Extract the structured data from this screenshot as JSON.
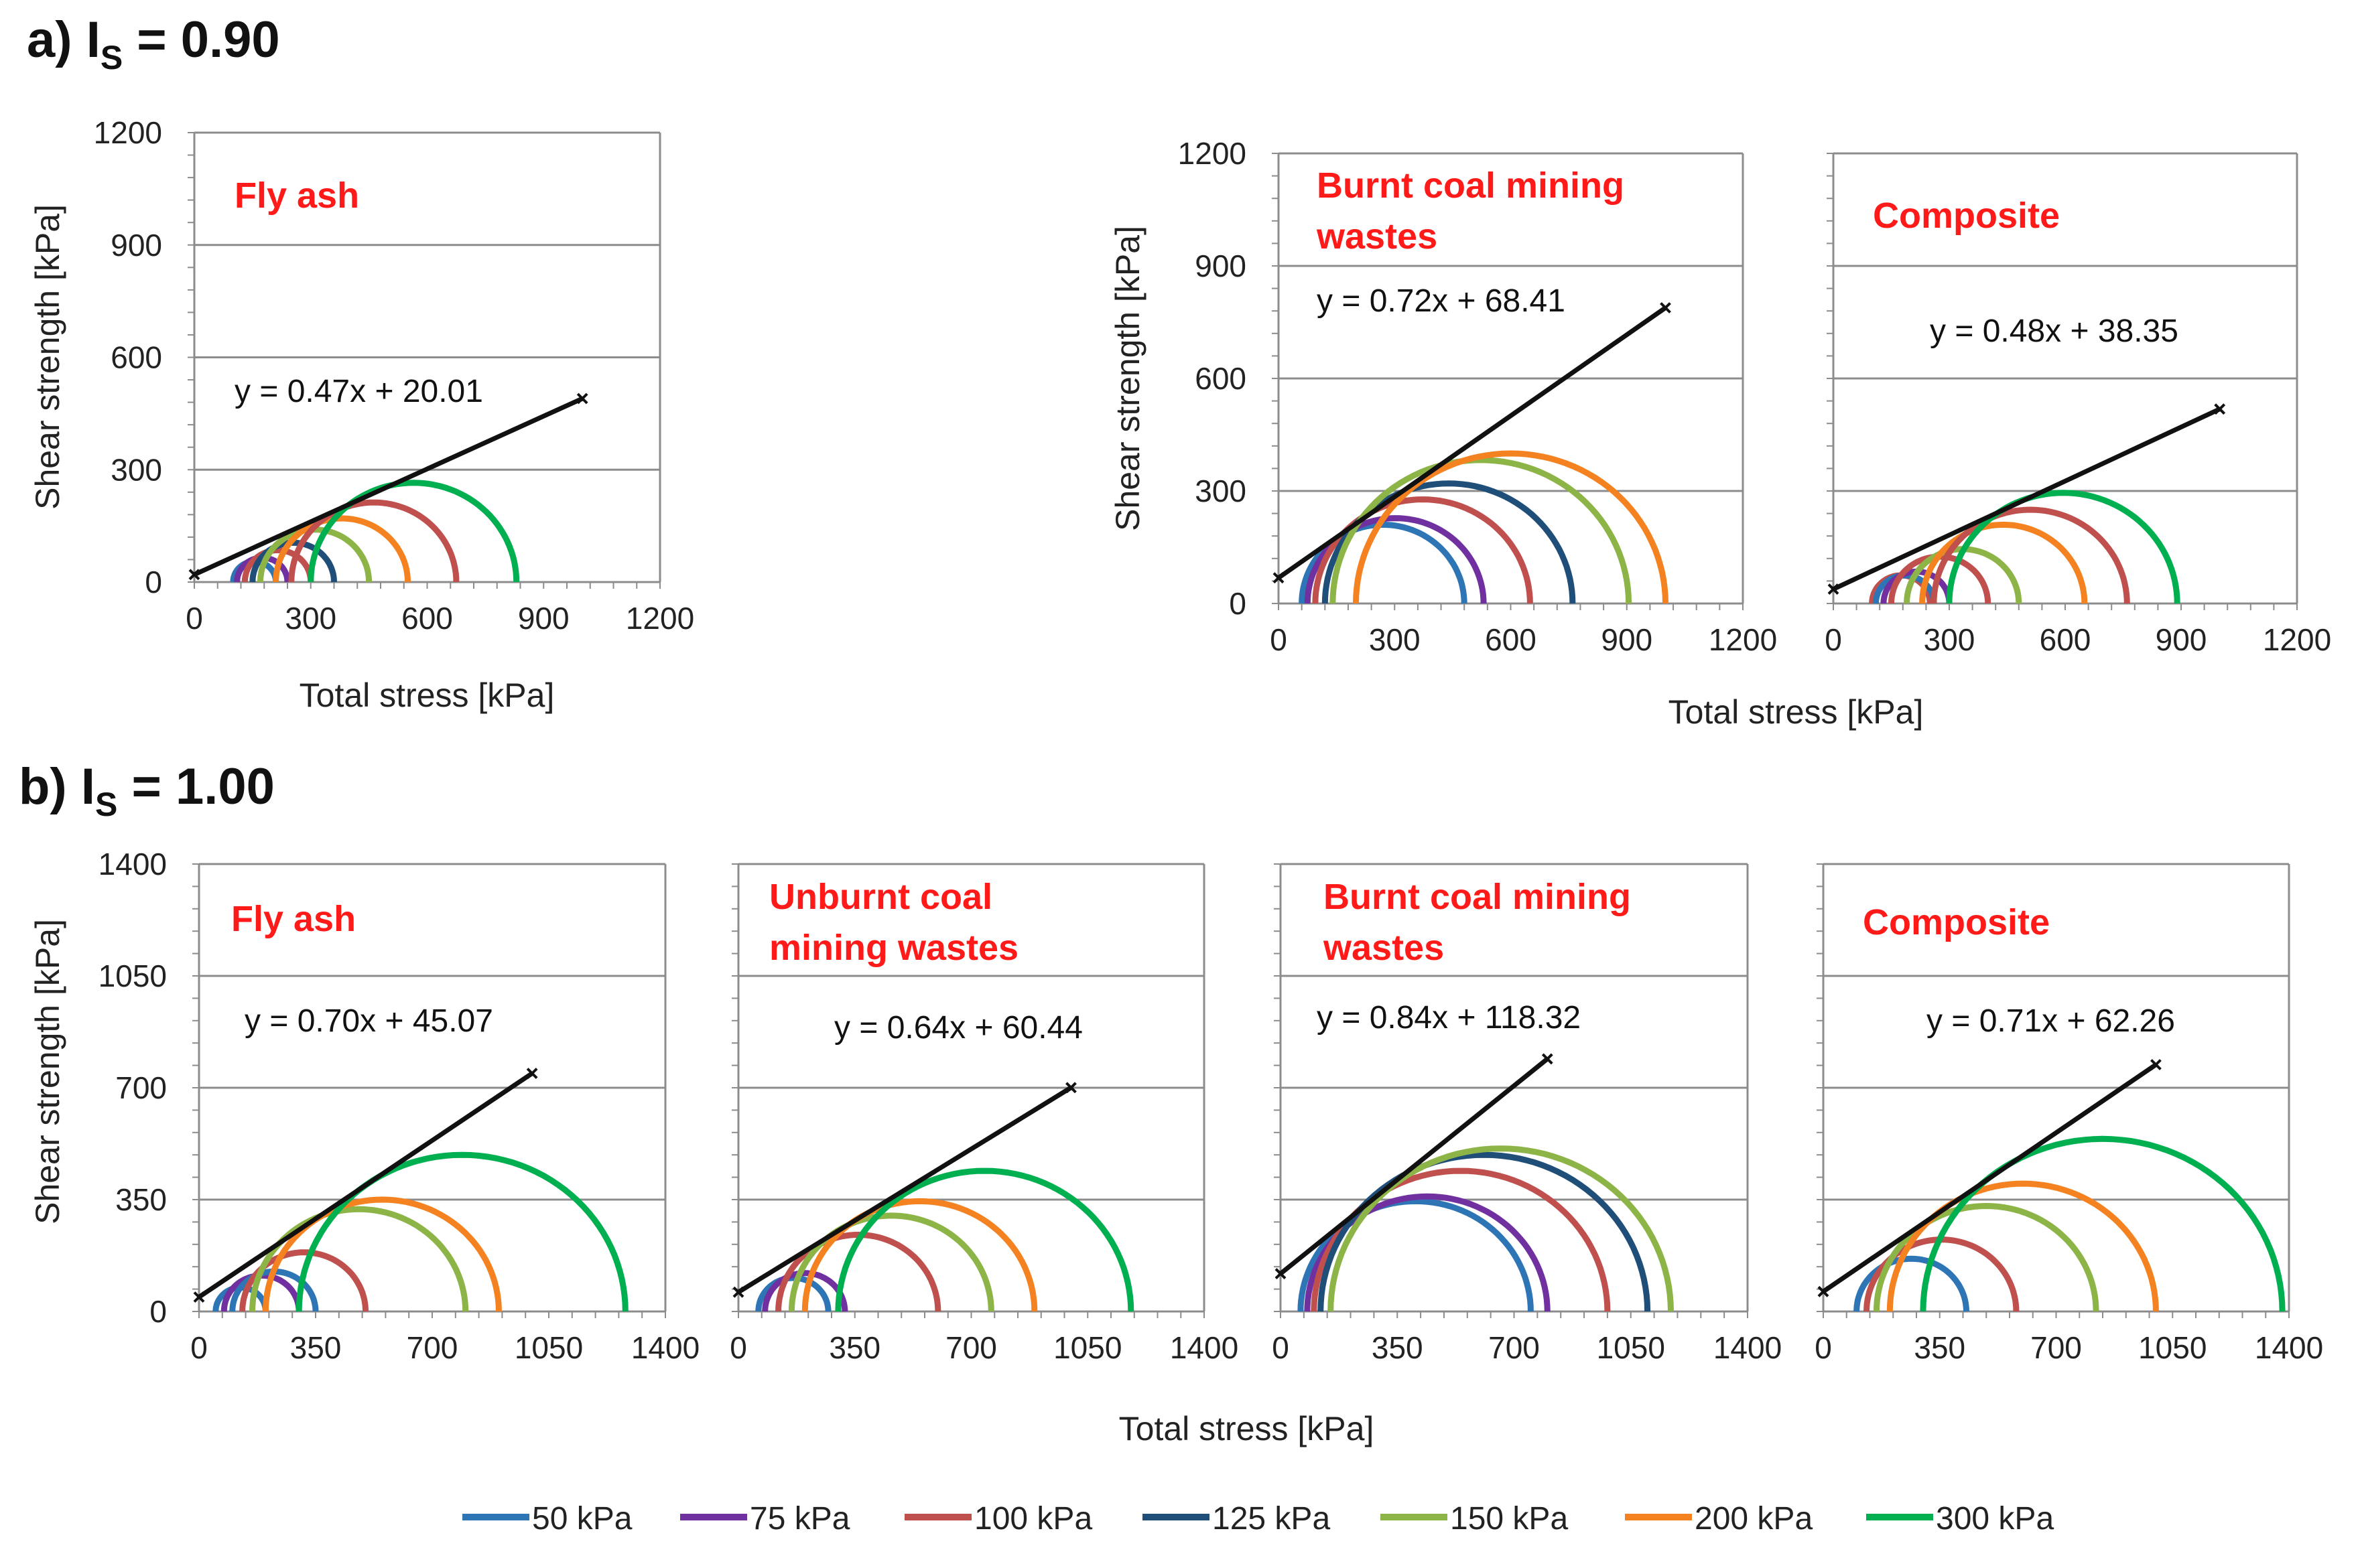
{
  "sections": [
    {
      "label": "a) I",
      "sub": "S",
      "value": " = 0.90"
    },
    {
      "label": "b) I",
      "sub": "S",
      "value": " = 1.00"
    }
  ],
  "axis_titles": {
    "y": "Shear strength [kPa]",
    "x": "Total stress [kPa]"
  },
  "legend": [
    {
      "name": "50 kPa",
      "color": "#2e75b6"
    },
    {
      "name": "75 kPa",
      "color": "#7030a0"
    },
    {
      "name": "100 kPa",
      "color": "#c0504d"
    },
    {
      "name": "125 kPa",
      "color": "#1f4e79"
    },
    {
      "name": "150 kPa",
      "color": "#8db446"
    },
    {
      "name": "200 kPa",
      "color": "#f58220"
    },
    {
      "name": "300 kPa",
      "color": "#00b050"
    }
  ],
  "chart_data": [
    {
      "type": "line",
      "section": "a",
      "title": [
        "Fly ash"
      ],
      "equation": "y = 0.47x + 20.01",
      "xlim": [
        0,
        1200
      ],
      "ylim": [
        0,
        1200
      ],
      "xticks": [
        0,
        300,
        600,
        900,
        1200
      ],
      "yticks": [
        0,
        300,
        600,
        900,
        1200
      ],
      "xlabel": "Total stress [kPa]",
      "ylabel": "Shear strength [kPa]",
      "envelope": {
        "slope": 0.47,
        "intercept": 20.01,
        "x": [
          0,
          1000
        ]
      },
      "circles": [
        {
          "series": "50 kPa",
          "sigma3": 100,
          "sigma1": 210
        },
        {
          "series": "75 kPa",
          "sigma3": 110,
          "sigma1": 240
        },
        {
          "series": "100 kPa",
          "sigma3": 130,
          "sigma1": 300
        },
        {
          "series": "125 kPa",
          "sigma3": 150,
          "sigma1": 360
        },
        {
          "series": "150 kPa",
          "sigma3": 170,
          "sigma1": 450
        },
        {
          "series": "200 kPa",
          "sigma3": 210,
          "sigma1": 550
        },
        {
          "series": "100 kPa",
          "sigma3": 250,
          "sigma1": 675
        },
        {
          "series": "300 kPa",
          "sigma3": 300,
          "sigma1": 830
        }
      ]
    },
    {
      "type": "line",
      "section": "a",
      "title": [
        "Burnt coal mining",
        "wastes"
      ],
      "equation": "y = 0.72x + 68.41",
      "xlim": [
        0,
        1200
      ],
      "ylim": [
        0,
        1200
      ],
      "xticks": [
        0,
        300,
        600,
        900,
        1200
      ],
      "yticks": [
        0,
        300,
        600,
        900,
        1200
      ],
      "xlabel": "",
      "ylabel": "Shear strength [kPa]",
      "envelope": {
        "slope": 0.72,
        "intercept": 68.41,
        "x": [
          0,
          1000
        ]
      },
      "circles": [
        {
          "series": "50 kPa",
          "sigma3": 60,
          "sigma1": 480
        },
        {
          "series": "75 kPa",
          "sigma3": 75,
          "sigma1": 530
        },
        {
          "series": "100 kPa",
          "sigma3": 95,
          "sigma1": 650
        },
        {
          "series": "125 kPa",
          "sigma3": 120,
          "sigma1": 760
        },
        {
          "series": "150 kPa",
          "sigma3": 140,
          "sigma1": 905
        },
        {
          "series": "200 kPa",
          "sigma3": 200,
          "sigma1": 1000
        }
      ]
    },
    {
      "type": "line",
      "section": "a",
      "title": [
        "Composite"
      ],
      "equation": "y = 0.48x + 38.35",
      "xlim": [
        0,
        1200
      ],
      "ylim": [
        0,
        1200
      ],
      "xticks": [
        0,
        300,
        600,
        900,
        1200
      ],
      "yticks": [
        0,
        300,
        600,
        900,
        1200
      ],
      "xlabel": "",
      "ylabel": "",
      "envelope": {
        "slope": 0.48,
        "intercept": 38.35,
        "x": [
          0,
          1000
        ]
      },
      "circles": [
        {
          "series": "100 kPa",
          "sigma3": 100,
          "sigma1": 250
        },
        {
          "series": "50 kPa",
          "sigma3": 110,
          "sigma1": 260
        },
        {
          "series": "75 kPa",
          "sigma3": 130,
          "sigma1": 300
        },
        {
          "series": "100 kPa",
          "sigma3": 150,
          "sigma1": 400
        },
        {
          "series": "150 kPa",
          "sigma3": 190,
          "sigma1": 480
        },
        {
          "series": "200 kPa",
          "sigma3": 230,
          "sigma1": 650
        },
        {
          "series": "100 kPa",
          "sigma3": 260,
          "sigma1": 760
        },
        {
          "series": "300 kPa",
          "sigma3": 300,
          "sigma1": 890
        }
      ]
    },
    {
      "type": "line",
      "section": "b",
      "title": [
        "Fly ash"
      ],
      "equation": "y = 0.70x + 45.07",
      "xlim": [
        0,
        1400
      ],
      "ylim": [
        0,
        1400
      ],
      "xticks": [
        0,
        350,
        700,
        1050,
        1400
      ],
      "yticks": [
        0,
        350,
        700,
        1050,
        1400
      ],
      "xlabel": "",
      "ylabel": "Shear strength [kPa]",
      "envelope": {
        "slope": 0.7,
        "intercept": 45.07,
        "x": [
          0,
          1000
        ]
      },
      "circles": [
        {
          "series": "50 kPa",
          "sigma3": 50,
          "sigma1": 200
        },
        {
          "series": "75 kPa",
          "sigma3": 75,
          "sigma1": 300
        },
        {
          "series": "50 kPa",
          "sigma3": 100,
          "sigma1": 350
        },
        {
          "series": "100 kPa",
          "sigma3": 130,
          "sigma1": 500
        },
        {
          "series": "150 kPa",
          "sigma3": 160,
          "sigma1": 800
        },
        {
          "series": "200 kPa",
          "sigma3": 200,
          "sigma1": 900
        },
        {
          "series": "300 kPa",
          "sigma3": 300,
          "sigma1": 1280
        }
      ]
    },
    {
      "type": "line",
      "section": "b",
      "title": [
        "Unburnt coal",
        "mining wastes"
      ],
      "equation": "y = 0.64x + 60.44",
      "xlim": [
        0,
        1400
      ],
      "ylim": [
        0,
        1400
      ],
      "xticks": [
        0,
        350,
        700,
        1050,
        1400
      ],
      "yticks": [
        0,
        350,
        700,
        1050,
        1400
      ],
      "xlabel": "",
      "ylabel": "",
      "envelope": {
        "slope": 0.64,
        "intercept": 60.44,
        "x": [
          0,
          1000
        ]
      },
      "circles": [
        {
          "series": "50 kPa",
          "sigma3": 60,
          "sigma1": 270
        },
        {
          "series": "75 kPa",
          "sigma3": 80,
          "sigma1": 320
        },
        {
          "series": "100 kPa",
          "sigma3": 120,
          "sigma1": 600
        },
        {
          "series": "150 kPa",
          "sigma3": 160,
          "sigma1": 760
        },
        {
          "series": "200 kPa",
          "sigma3": 200,
          "sigma1": 890
        },
        {
          "series": "300 kPa",
          "sigma3": 300,
          "sigma1": 1180
        }
      ]
    },
    {
      "type": "line",
      "section": "b",
      "title": [
        "Burnt coal mining",
        "wastes"
      ],
      "equation": "y = 0.84x + 118.32",
      "xlim": [
        0,
        1400
      ],
      "ylim": [
        0,
        1400
      ],
      "xticks": [
        0,
        350,
        700,
        1050,
        1400
      ],
      "yticks": [
        0,
        350,
        700,
        1050,
        1400
      ],
      "xlabel": "Total stress [kPa]",
      "ylabel": "",
      "envelope": {
        "slope": 0.84,
        "intercept": 118.32,
        "x": [
          0,
          800
        ]
      },
      "circles": [
        {
          "series": "50 kPa",
          "sigma3": 60,
          "sigma1": 750
        },
        {
          "series": "75 kPa",
          "sigma3": 80,
          "sigma1": 800
        },
        {
          "series": "100 kPa",
          "sigma3": 100,
          "sigma1": 980
        },
        {
          "series": "125 kPa",
          "sigma3": 120,
          "sigma1": 1100
        },
        {
          "series": "150 kPa",
          "sigma3": 150,
          "sigma1": 1170
        }
      ]
    },
    {
      "type": "line",
      "section": "b",
      "title": [
        "Composite"
      ],
      "equation": "y = 0.71x + 62.26",
      "xlim": [
        0,
        1400
      ],
      "ylim": [
        0,
        1400
      ],
      "xticks": [
        0,
        350,
        700,
        1050,
        1400
      ],
      "yticks": [
        0,
        350,
        700,
        1050,
        1400
      ],
      "xlabel": "",
      "ylabel": "",
      "envelope": {
        "slope": 0.71,
        "intercept": 62.26,
        "x": [
          0,
          1000
        ]
      },
      "circles": [
        {
          "series": "50 kPa",
          "sigma3": 100,
          "sigma1": 430
        },
        {
          "series": "100 kPa",
          "sigma3": 130,
          "sigma1": 580
        },
        {
          "series": "150 kPa",
          "sigma3": 160,
          "sigma1": 820
        },
        {
          "series": "200 kPa",
          "sigma3": 200,
          "sigma1": 1000
        },
        {
          "series": "300 kPa",
          "sigma3": 300,
          "sigma1": 1380
        }
      ]
    }
  ]
}
